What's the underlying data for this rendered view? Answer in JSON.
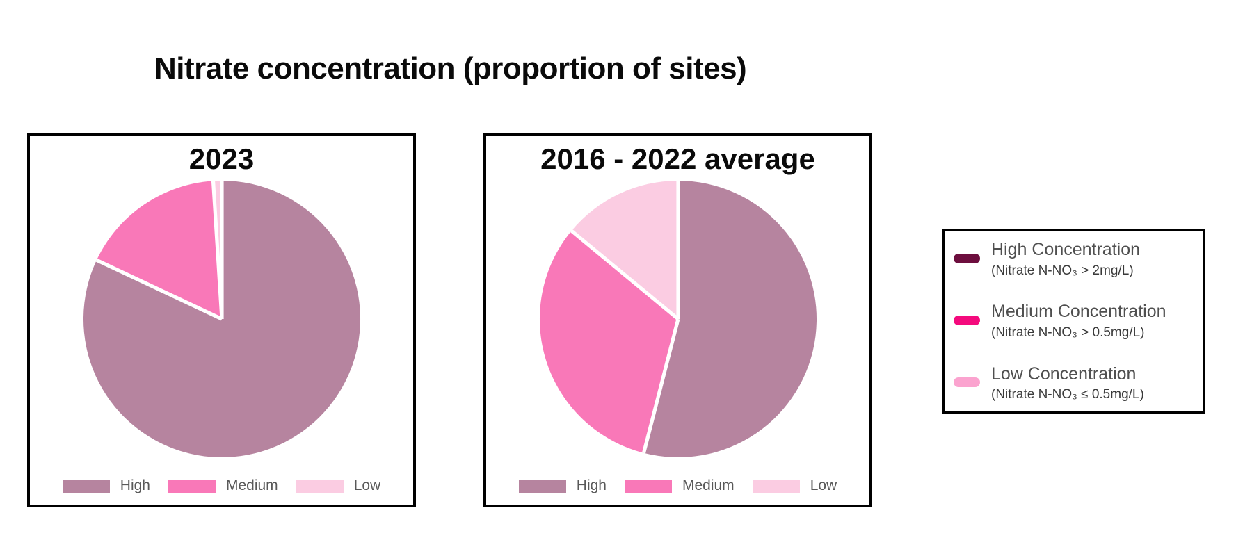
{
  "page": {
    "title": "Nitrate concentration (proportion of sites)"
  },
  "chart_data": [
    {
      "type": "pie",
      "title": "2023",
      "categories": [
        "High",
        "Medium",
        "Low"
      ],
      "values": [
        82,
        17,
        1
      ],
      "colors": [
        "#b6849f",
        "#f978b8",
        "#fbcce2"
      ],
      "start_angle_deg": 0,
      "direction": "clockwise",
      "slice_separator_color": "#ffffff",
      "legend_position": "bottom"
    },
    {
      "type": "pie",
      "title": "2016 - 2022 average",
      "categories": [
        "High",
        "Medium",
        "Low"
      ],
      "values": [
        54,
        32,
        14
      ],
      "colors": [
        "#b6849f",
        "#f978b8",
        "#fbcce2"
      ],
      "start_angle_deg": 0,
      "direction": "clockwise",
      "slice_separator_color": "#ffffff",
      "legend_position": "bottom"
    }
  ],
  "legend_panel": {
    "items": [
      {
        "label": "High Concentration",
        "sublabel": "(Nitrate N-NO₃ > 2mg/L)",
        "color": "#6d0e3e"
      },
      {
        "label": "Medium Concentration",
        "sublabel": "(Nitrate N-NO₃ > 0.5mg/L)",
        "color": "#f40a7d"
      },
      {
        "label": "Low Concentration",
        "sublabel": "(Nitrate N-NO₃ ≤ 0.5mg/L)",
        "color": "#fba3cf"
      }
    ]
  }
}
